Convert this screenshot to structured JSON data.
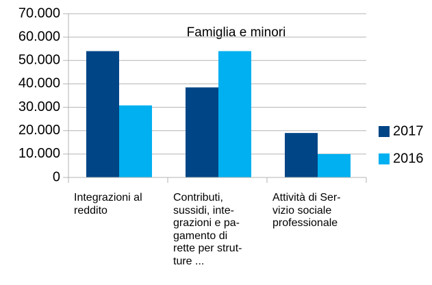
{
  "chart_data": {
    "type": "bar",
    "title": "Famiglia e minori",
    "categories": [
      "Integrazioni al\nreddito",
      "Contributi,\nsussidi, inte-\ngrazioni e pa-\ngamento di\nrette per strut-\nture ...",
      "Attività di Ser-\nvizio sociale\nprofessionale"
    ],
    "series": [
      {
        "name": "2017",
        "color": "#004586",
        "values": [
          54000,
          38500,
          19000
        ]
      },
      {
        "name": "2016",
        "color": "#00b0f0",
        "values": [
          30800,
          54000,
          10000
        ]
      }
    ],
    "ylim": [
      0,
      70000
    ],
    "yticks": [
      0,
      {
        "value": 10000,
        "label": "10.000"
      },
      {
        "value": 20000,
        "label": "20.000"
      },
      {
        "value": 30000,
        "label": "30.000"
      },
      {
        "value": 40000,
        "label": "40.000"
      },
      {
        "value": 50000,
        "label": "50.000"
      },
      {
        "value": 60000,
        "label": "60.000"
      },
      {
        "value": 70000,
        "label": "70.000"
      }
    ],
    "grid": true,
    "legend": "right"
  }
}
